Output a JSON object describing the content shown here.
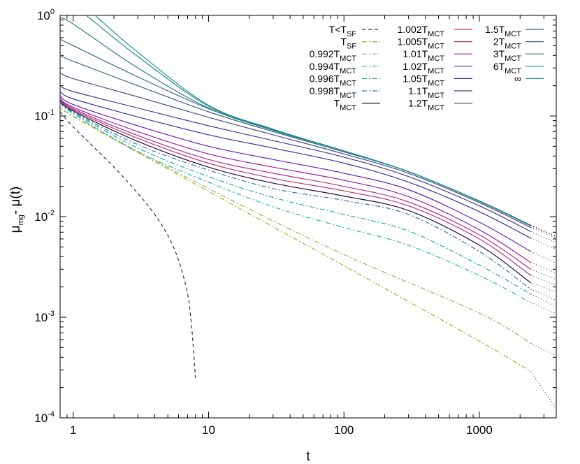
{
  "chart_data": {
    "type": "line",
    "xscale": "log",
    "yscale": "log",
    "xlim": [
      0.8,
      3700
    ],
    "ylim": [
      0.0001,
      1
    ],
    "xlabel": "t",
    "ylabel": {
      "base": "μ",
      "sub": "mg",
      "rest": "- μ(t)"
    },
    "xticks": [
      {
        "value": 1,
        "label": "1"
      },
      {
        "value": 10,
        "label": "10"
      },
      {
        "value": 100,
        "label": "100"
      },
      {
        "value": 1000,
        "label": "1000"
      }
    ],
    "yticks": [
      {
        "value": 1,
        "mant": "10",
        "exp": "0"
      },
      {
        "value": 0.1,
        "mant": "10",
        "exp": "-1"
      },
      {
        "value": 0.01,
        "mant": "10",
        "exp": "-2"
      },
      {
        "value": 0.001,
        "mant": "10",
        "exp": "-3"
      },
      {
        "value": 0.0001,
        "mant": "10",
        "exp": "-4"
      }
    ],
    "grid": false,
    "legend_position": "top-right",
    "series": [
      {
        "name": {
          "main": "T<T",
          "sub": "SF"
        },
        "color": "#333333",
        "dash": "5,4",
        "x": [
          0.8,
          1,
          2,
          3,
          4,
          5,
          6,
          7,
          7.5,
          8
        ],
        "y": [
          0.11,
          0.078,
          0.031,
          0.017,
          0.0105,
          0.0065,
          0.0037,
          0.0017,
          0.0008,
          0.00025
        ]
      },
      {
        "name": {
          "main": "T",
          "sub": "SF"
        },
        "color": "#c9a227",
        "dash": "7,3,2,3",
        "x": [
          0.8,
          1,
          10,
          100,
          1000,
          2400
        ],
        "y": [
          0.13,
          0.099,
          0.0178,
          0.00325,
          0.00058,
          0.00029
        ],
        "tail": [
          2400,
          3600,
          0.00013
        ]
      },
      {
        "name": {
          "main": "0.992T",
          "sub": "MCT"
        },
        "color": "#8fb55b",
        "dash": "7,3,2,3",
        "x": [
          0.8,
          1,
          10,
          100,
          1000,
          2400
        ],
        "y": [
          0.13,
          0.1,
          0.019,
          0.0042,
          0.0011,
          0.00055
        ],
        "tail": [
          2400,
          3600,
          0.00042
        ]
      },
      {
        "name": {
          "main": "0.994T",
          "sub": "MCT"
        },
        "color": "#2bb5b5",
        "dash": "7,3,2,3",
        "x": [
          0.8,
          1,
          3,
          10,
          30,
          100,
          300,
          1000,
          2400
        ],
        "y": [
          0.135,
          0.105,
          0.044,
          0.022,
          0.0125,
          0.0078,
          0.0052,
          0.0026,
          0.0014
        ],
        "tail": [
          2400,
          3600,
          0.0011
        ]
      },
      {
        "name": {
          "main": "0.996T",
          "sub": "MCT"
        },
        "color": "#26a9b0",
        "dash": "7,3,2,3",
        "x": [
          0.8,
          1,
          3,
          10,
          30,
          100,
          300,
          1000,
          2400
        ],
        "y": [
          0.137,
          0.108,
          0.048,
          0.025,
          0.0155,
          0.0105,
          0.0072,
          0.0033,
          0.0017
        ],
        "tail": [
          2400,
          3600,
          0.0013
        ]
      },
      {
        "name": {
          "main": "0.998T",
          "sub": "MCT"
        },
        "color": "#2a7ab5",
        "dash": "7,3,2,3",
        "x": [
          0.8,
          1,
          3,
          10,
          30,
          100,
          300,
          1000,
          2400
        ],
        "y": [
          0.14,
          0.11,
          0.052,
          0.029,
          0.019,
          0.0145,
          0.0105,
          0.0045,
          0.0019
        ],
        "tail": [
          2400,
          3600,
          0.0015
        ]
      },
      {
        "name": {
          "main": "T",
          "sub": "MCT"
        },
        "color": "#2d0b2e",
        "dash": "",
        "x": [
          0.8,
          1,
          3,
          10,
          30,
          100,
          300,
          1000,
          2400
        ],
        "y": [
          0.142,
          0.112,
          0.056,
          0.031,
          0.0215,
          0.016,
          0.0115,
          0.0052,
          0.0022
        ],
        "tail": [
          2400,
          3600,
          0.0018
        ]
      },
      {
        "name": {
          "main": "1.002T",
          "sub": "MCT"
        },
        "color": "#c2366b",
        "dash": "",
        "x": [
          0.8,
          1,
          3,
          10,
          30,
          100,
          300,
          1000,
          2400
        ],
        "y": [
          0.145,
          0.115,
          0.06,
          0.034,
          0.024,
          0.018,
          0.0128,
          0.006,
          0.0026
        ],
        "tail": [
          2400,
          3600,
          0.0021
        ]
      },
      {
        "name": {
          "main": "1.005T",
          "sub": "MCT"
        },
        "color": "#b52e8c",
        "dash": "",
        "x": [
          0.8,
          1,
          3,
          10,
          30,
          100,
          300,
          1000,
          2400
        ],
        "y": [
          0.148,
          0.118,
          0.064,
          0.037,
          0.027,
          0.02,
          0.014,
          0.0066,
          0.003
        ],
        "tail": [
          2400,
          3600,
          0.0024
        ]
      },
      {
        "name": {
          "main": "1.01T",
          "sub": "MCT"
        },
        "color": "#9b1fa8",
        "dash": "",
        "x": [
          0.8,
          1,
          3,
          10,
          30,
          100,
          300,
          1000,
          2400
        ],
        "y": [
          0.15,
          0.122,
          0.07,
          0.042,
          0.031,
          0.023,
          0.0158,
          0.0074,
          0.0035
        ],
        "tail": [
          2400,
          3600,
          0.0028
        ]
      },
      {
        "name": {
          "main": "1.02T",
          "sub": "MCT"
        },
        "color": "#6a1fb3",
        "dash": "",
        "x": [
          0.8,
          1,
          3,
          10,
          30,
          100,
          300,
          1000,
          2400
        ],
        "y": [
          0.16,
          0.13,
          0.08,
          0.05,
          0.037,
          0.027,
          0.0185,
          0.0088,
          0.0045
        ],
        "tail": [
          2400,
          3600,
          0.0035
        ]
      },
      {
        "name": {
          "main": "1.05T",
          "sub": "MCT"
        },
        "color": "#3e2fa0",
        "dash": "",
        "x": [
          0.8,
          1,
          3,
          10,
          30,
          100,
          300,
          1000,
          2400
        ],
        "y": [
          0.175,
          0.148,
          0.098,
          0.065,
          0.048,
          0.034,
          0.022,
          0.0112,
          0.0061
        ],
        "tail": [
          2400,
          3600,
          0.0048
        ]
      },
      {
        "name": {
          "main": "1.1T",
          "sub": "MCT"
        },
        "color": "#4a3a8c",
        "dash": "",
        "x": [
          0.8,
          1,
          3,
          10,
          30,
          100,
          300,
          1000,
          2400
        ],
        "y": [
          0.2,
          0.175,
          0.12,
          0.08,
          0.057,
          0.039,
          0.025,
          0.0128,
          0.0071
        ],
        "tail": [
          2400,
          3600,
          0.0056
        ]
      },
      {
        "name": {
          "main": "1.2T",
          "sub": "MCT"
        },
        "color": "#3f4f8a",
        "dash": "",
        "x": [
          0.8,
          1,
          3,
          10,
          30,
          100,
          300,
          1000,
          2400
        ],
        "y": [
          0.27,
          0.235,
          0.155,
          0.097,
          0.065,
          0.042,
          0.027,
          0.0138,
          0.0078
        ],
        "tail": [
          2400,
          3600,
          0.0062
        ]
      },
      {
        "name": {
          "main": "1.5T",
          "sub": "MCT"
        },
        "color": "#3a5f85",
        "dash": "",
        "x": [
          0.8,
          1,
          3,
          10,
          30,
          100,
          300,
          1000,
          2400
        ],
        "y": [
          0.4,
          0.35,
          0.2,
          0.11,
          0.07,
          0.044,
          0.028,
          0.0142,
          0.0081
        ],
        "tail": [
          2400,
          3600,
          0.0064
        ]
      },
      {
        "name": {
          "main": "2T",
          "sub": "MCT"
        },
        "color": "#2f6e80",
        "dash": "",
        "x": [
          0.8,
          1,
          3,
          10,
          30,
          100,
          300,
          1000,
          2400
        ],
        "y": [
          0.58,
          0.5,
          0.245,
          0.118,
          0.072,
          0.045,
          0.028,
          0.0143,
          0.0082
        ],
        "tail": [
          2400,
          3600,
          0.0065
        ]
      },
      {
        "name": {
          "main": "3T",
          "sub": "MCT"
        },
        "color": "#2b7b85",
        "dash": "",
        "x": [
          0.8,
          1,
          3,
          10,
          30,
          100,
          300,
          1000,
          2400
        ],
        "y": [
          0.95,
          0.82,
          0.3,
          0.12,
          0.072,
          0.045,
          0.028,
          0.0143,
          0.0082
        ],
        "tail": [
          2400,
          3600,
          0.0065
        ]
      },
      {
        "name": {
          "main": "6T",
          "sub": "MCT"
        },
        "color": "#26878a",
        "dash": "",
        "x": [
          1.25,
          3,
          10,
          30,
          100,
          300,
          1000,
          2400
        ],
        "y": [
          1,
          0.39,
          0.125,
          0.073,
          0.045,
          0.028,
          0.0143,
          0.0082
        ],
        "tail": [
          2400,
          3600,
          0.0065
        ]
      },
      {
        "name": {
          "main": "∞",
          "sub": ""
        },
        "color": "#1f9191",
        "dash": "",
        "x": [
          1.45,
          3,
          10,
          30,
          100,
          300,
          1000,
          2400
        ],
        "y": [
          1,
          0.43,
          0.128,
          0.074,
          0.045,
          0.028,
          0.0143,
          0.0082
        ],
        "tail": [
          2400,
          3600,
          0.0065
        ]
      }
    ]
  }
}
